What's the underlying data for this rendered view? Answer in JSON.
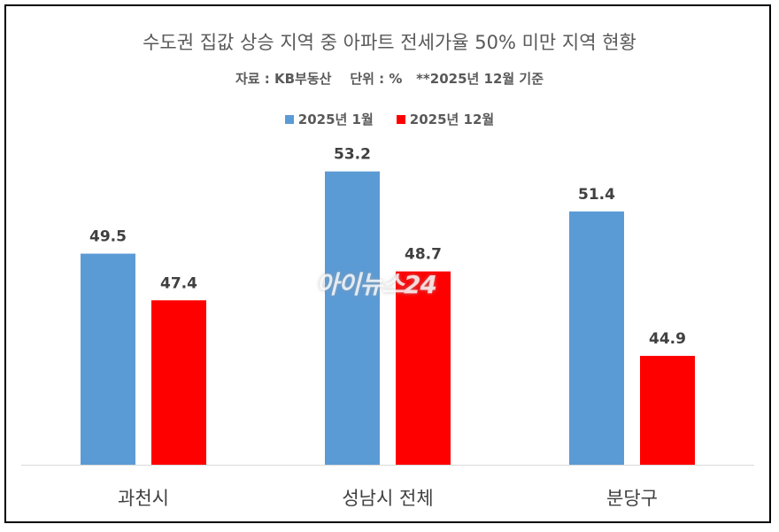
{
  "chart_data": {
    "type": "bar",
    "title": "수도권 집값 상승 지역 중 아파트 전세가율 50% 미만 지역 현황",
    "subtitle": "자료 : KB부동산    단위 : %   **2025년 12월 기준",
    "categories": [
      "과천시",
      "성남시 전체",
      "분당구"
    ],
    "series": [
      {
        "name": "2025년 1월",
        "values": [
          49.5,
          53.2,
          51.4
        ],
        "color": "#5B9BD5"
      },
      {
        "name": "2025년 12월",
        "values": [
          47.4,
          48.7,
          44.9
        ],
        "color": "#FF0000"
      }
    ],
    "ylim": [
      40,
      54
    ],
    "grid": false,
    "legend": "top",
    "xlabel": "",
    "ylabel": ""
  },
  "watermark": "아이뉴스24"
}
